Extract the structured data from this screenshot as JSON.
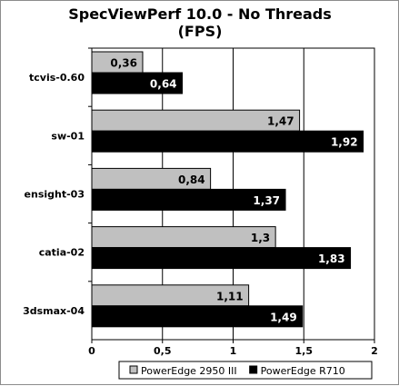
{
  "chart_data": {
    "type": "bar",
    "orientation": "horizontal",
    "title": [
      "SpecViewPerf 10.0 - No Threads",
      "(FPS)"
    ],
    "categories": [
      "tcvis-0.60",
      "sw-01",
      "ensight-03",
      "catia-02",
      "3dsmax-04"
    ],
    "series": [
      {
        "name": "PowerEdge 2950 III",
        "values": [
          0.36,
          1.47,
          0.84,
          1.3,
          1.11
        ],
        "labels": [
          "0,36",
          "1,47",
          "0,84",
          "1,3",
          "1,11"
        ],
        "color": "#c0c0c0",
        "label_color": "#000000"
      },
      {
        "name": "PowerEdge R710",
        "values": [
          0.64,
          1.92,
          1.37,
          1.83,
          1.49
        ],
        "labels": [
          "0,64",
          "1,92",
          "1,37",
          "1,83",
          "1,49"
        ],
        "color": "#000000",
        "label_color": "#ffffff"
      }
    ],
    "xlim": [
      0,
      2
    ],
    "ticks": [
      0,
      0.5,
      1,
      1.5,
      2
    ],
    "tick_labels": [
      "0",
      "0,5",
      "1",
      "1,5",
      "2"
    ],
    "grid": true,
    "legend": "bottom-right",
    "plot_bg": "#ffffff",
    "grid_color": "#000000"
  }
}
